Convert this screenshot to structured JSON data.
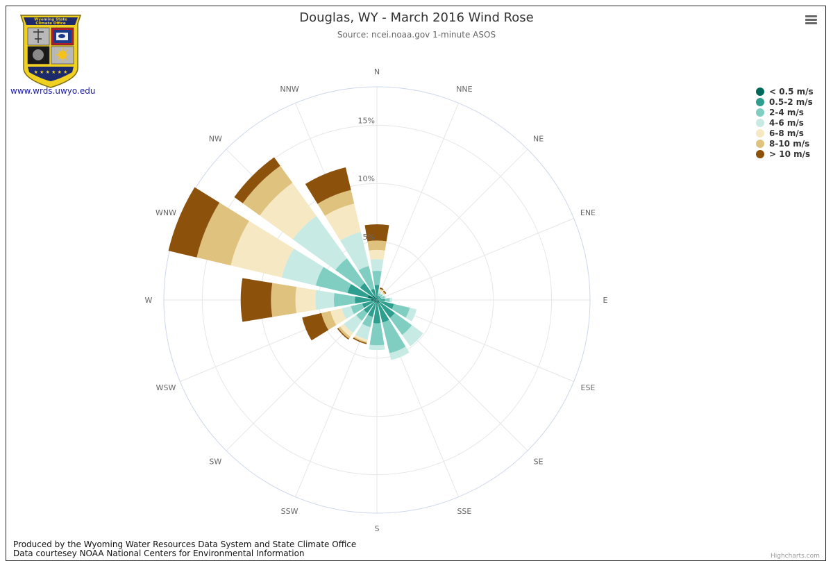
{
  "title": "Douglas, WY - March 2016 Wind Rose",
  "subtitle": "Source: ncei.noaa.gov 1-minute ASOS",
  "logo": {
    "link_text": "www.wrds.uwyo.edu",
    "badge_text_line1": "Wyoming State",
    "badge_text_line2": "Climate Office"
  },
  "menu_icon": "hamburger-menu-icon",
  "footer": {
    "line1": "Produced by the Wyoming Water Resources Data System and State Climate Office",
    "line2": "Data courtesey NOAA National Centers for Environmental Information"
  },
  "credits": "Highcharts.com",
  "colors": {
    "grid": "#e6e6e6",
    "outer_ring": "#ccd6eb",
    "label": "#666666"
  },
  "chart_data": {
    "type": "bar",
    "polar": true,
    "stacking": "normal",
    "title": "Douglas, WY - March 2016 Wind Rose",
    "subtitle": "Source: ncei.noaa.gov 1-minute ASOS",
    "categories": [
      "N",
      "NNE",
      "NE",
      "ENE",
      "E",
      "ESE",
      "SE",
      "SSE",
      "S",
      "SSW",
      "SW",
      "WSW",
      "W",
      "WNW",
      "NW",
      "NNW"
    ],
    "radial_axis": {
      "min": 0,
      "max": 18.3,
      "tick_labels": [
        "5%",
        "10%",
        "15%"
      ],
      "tick_values": [
        5,
        10,
        15
      ],
      "extra_gridlines": [
        20
      ]
    },
    "legend_position": "top-right",
    "grid": true,
    "series": [
      {
        "name": "< 0.5 m/s",
        "color": "#00695c",
        "values": [
          0.3,
          0.1,
          0.1,
          0.1,
          0.1,
          0.2,
          0.3,
          0.3,
          0.3,
          0.2,
          0.3,
          0.3,
          0.5,
          0.8,
          0.5,
          0.2
        ]
      },
      {
        "name": "0.5-2 m/s",
        "color": "#2e9e8e",
        "values": [
          1.0,
          0.3,
          0.3,
          0.3,
          0.6,
          1.3,
          1.6,
          1.7,
          1.7,
          1.3,
          1.1,
          1.0,
          1.4,
          1.8,
          1.3,
          0.8
        ]
      },
      {
        "name": "2-4 m/s",
        "color": "#80cdc1",
        "values": [
          1.2,
          0.2,
          0.2,
          0.3,
          0.4,
          1.4,
          1.8,
          2.7,
          1.9,
          0.9,
          0.8,
          1.0,
          1.8,
          2.8,
          2.6,
          2.0
        ]
      },
      {
        "name": "4-6 m/s",
        "color": "#c7eae5",
        "values": [
          1.0,
          0.2,
          0.1,
          0.1,
          0.2,
          0.6,
          1.2,
          0.6,
          0.4,
          1.1,
          1.3,
          0.8,
          1.6,
          3.0,
          4.5,
          3.0
        ]
      },
      {
        "name": "6-8 m/s",
        "color": "#f6e8c3",
        "values": [
          0.8,
          0.1,
          0.1,
          0.0,
          0.0,
          0.0,
          0.0,
          0.0,
          0.0,
          0.2,
          0.4,
          1.0,
          1.7,
          4.5,
          3.5,
          2.5
        ]
      },
      {
        "name": "8-10 m/s",
        "color": "#dfc27d",
        "values": [
          0.8,
          0.1,
          0.1,
          0.0,
          0.0,
          0.0,
          0.0,
          0.0,
          0.0,
          0.1,
          0.2,
          0.8,
          2.1,
          3.0,
          1.8,
          1.2
        ]
      },
      {
        "name": "> 10 m/s",
        "color": "#8c510a",
        "values": [
          1.4,
          0.1,
          0.1,
          0.0,
          0.0,
          0.0,
          0.0,
          0.0,
          0.0,
          0.1,
          0.1,
          1.7,
          2.6,
          2.5,
          0.9,
          2.0
        ]
      }
    ]
  }
}
